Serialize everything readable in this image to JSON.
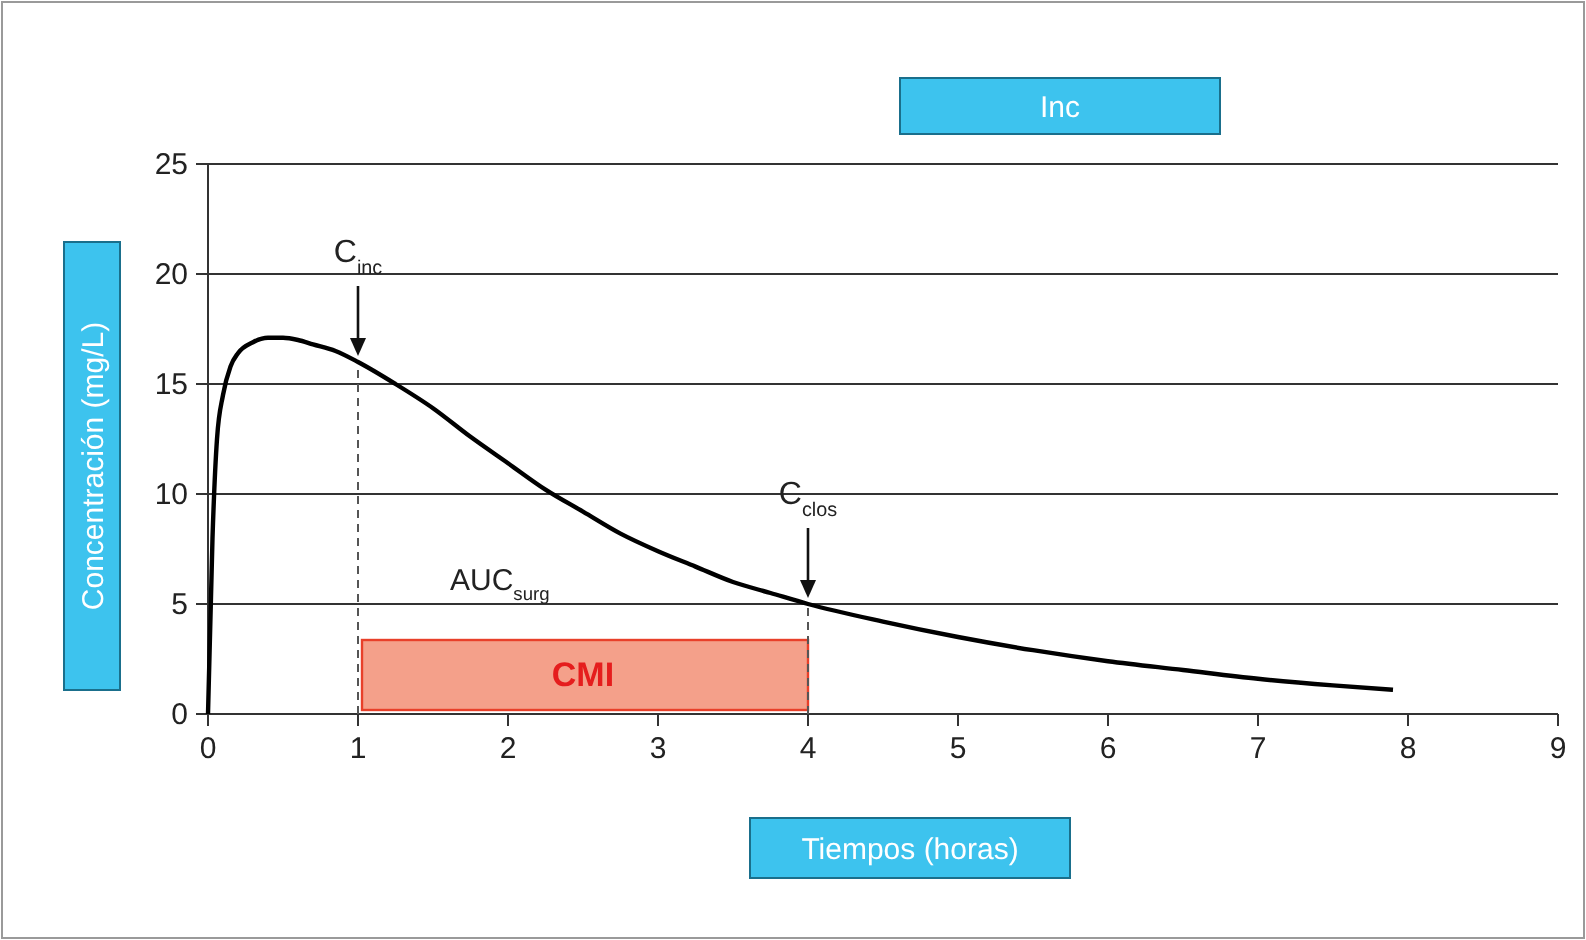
{
  "chart_data": {
    "type": "line",
    "title": "Inc",
    "xlabel": "Tiempos (horas)",
    "ylabel": "Concentración (mg/L)",
    "xlim": [
      0,
      9
    ],
    "xticks": [
      0,
      1,
      2,
      3,
      4,
      5,
      6,
      7,
      8,
      9
    ],
    "ylim": [
      0,
      25
    ],
    "yticks": [
      0,
      5,
      10,
      15,
      20,
      25
    ],
    "grid": "y",
    "marker": "none",
    "line_style": "solid",
    "x": [
      0,
      0.03,
      0.06,
      0.1,
      0.15,
      0.2,
      0.3,
      0.4,
      0.5,
      0.6,
      0.7,
      0.85,
      1,
      1.25,
      1.5,
      1.75,
      2,
      2.25,
      2.5,
      2.75,
      3,
      3.25,
      3.5,
      3.75,
      4,
      4.5,
      5,
      5.5,
      6,
      6.5,
      7,
      7.5,
      7.9
    ],
    "series": [
      {
        "color": "#000000",
        "values": [
          0,
          8,
          12.5,
          14.5,
          15.8,
          16.4,
          16.9,
          17.1,
          17.1,
          17,
          16.8,
          16.5,
          16,
          15,
          13.9,
          12.6,
          11.4,
          10.2,
          9.2,
          8.2,
          7.4,
          6.7,
          6,
          5.5,
          5,
          4.2,
          3.5,
          2.9,
          2.4,
          2,
          1.6,
          1.3,
          1.1
        ]
      }
    ],
    "ref_lines": [
      {
        "axis": "x",
        "value": 1,
        "color": "#555555",
        "line_style": "dashed"
      },
      {
        "axis": "x",
        "value": 4,
        "color": "#555555",
        "line_style": "dashed"
      }
    ],
    "bands": [
      {
        "axis": "x",
        "from": 1,
        "to": 4,
        "label": "CMI",
        "color": "#f4a08a"
      }
    ],
    "annotations": [
      {
        "text": "C$_{inc}$",
        "x": 1,
        "y": 16
      },
      {
        "text": "C$_{clos}$",
        "x": 4,
        "y": 5
      },
      "AUC$_{surg}$"
    ]
  }
}
